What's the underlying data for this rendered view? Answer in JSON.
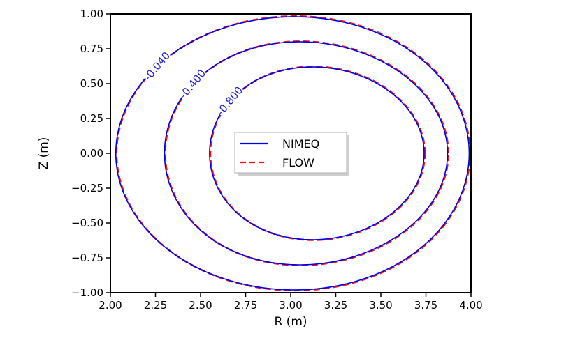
{
  "chart_data": {
    "type": "line",
    "xlabel": "R (m)",
    "ylabel": "Z (m)",
    "xlim": [
      2.0,
      4.0
    ],
    "ylim": [
      -1.0,
      1.0
    ],
    "xticks": [
      "2.00",
      "2.25",
      "2.50",
      "2.75",
      "3.00",
      "3.25",
      "3.50",
      "3.75",
      "4.00"
    ],
    "yticks": [
      "1.00",
      "0.75",
      "0.50",
      "0.25",
      "0.00",
      "−0.25",
      "−0.50",
      "−0.75",
      "−1.00"
    ],
    "grid": false,
    "legend_position": "center",
    "series": [
      {
        "name": "NIMEQ",
        "color": "#0000ee",
        "style": "solid"
      },
      {
        "name": "FLOW",
        "color": "#ee1111",
        "style": "dashed"
      }
    ],
    "contours": [
      {
        "label": "-0.040",
        "r_min": 2.03,
        "r_max": 3.99,
        "z_max": 0.98,
        "z_min": -0.98,
        "r_zmax": 3.02,
        "r_zmin": 3.02
      },
      {
        "label": "-0.400",
        "r_min": 2.3,
        "r_max": 3.87,
        "z_max": 0.8,
        "z_min": -0.8,
        "r_zmax": 3.05,
        "r_zmin": 3.05
      },
      {
        "label": "-0.800",
        "r_min": 2.55,
        "r_max": 3.74,
        "z_max": 0.62,
        "z_min": -0.62,
        "r_zmax": 3.12,
        "r_zmin": 3.12
      }
    ]
  }
}
